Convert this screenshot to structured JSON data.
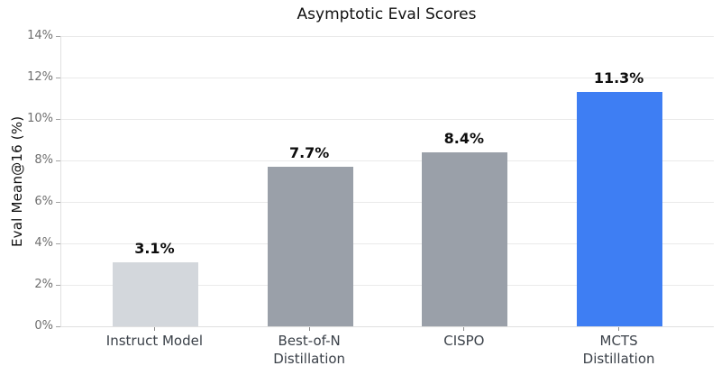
{
  "chart_data": {
    "type": "bar",
    "title": "Asymptotic Eval Scores",
    "xlabel": "",
    "ylabel": "Eval Mean@16 (%)",
    "categories": [
      "Instruct Model",
      "Best-of-N\nDistillation",
      "CISPO",
      "MCTS\nDistillation"
    ],
    "values": [
      3.1,
      7.7,
      8.4,
      11.3
    ],
    "value_labels": [
      "3.1%",
      "7.7%",
      "8.4%",
      "11.3%"
    ],
    "bar_colors": [
      "#d3d7dc",
      "#9aa0a9",
      "#9aa0a9",
      "#3e7ef3"
    ],
    "ylim": [
      0,
      14
    ],
    "ytick_step": 2,
    "ytick_labels": [
      "0%",
      "2%",
      "4%",
      "6%",
      "8%",
      "10%",
      "12%",
      "14%"
    ],
    "grid": "horizontal",
    "legend": "none"
  },
  "style": {
    "background": "#ffffff",
    "grid_color": "#eaeaea",
    "spine_color": "#e0e0e0",
    "tick_color": "#a3a3a3",
    "title_color": "#111111",
    "ytick_text_color": "#6f6f6f",
    "xtick_text_color": "#3b4149",
    "value_label_color": "#0d0d0d"
  }
}
